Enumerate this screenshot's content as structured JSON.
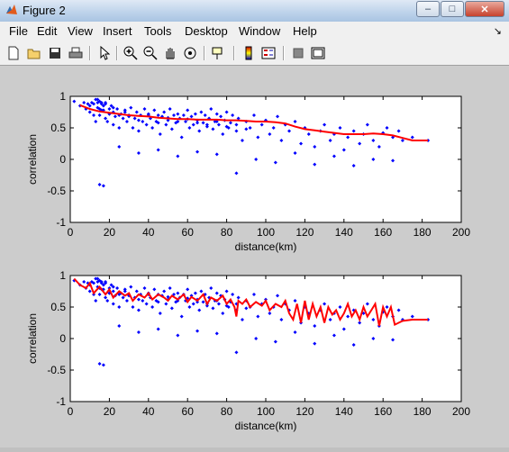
{
  "window": {
    "title": "Figure 2",
    "close_glyph": "✕",
    "min_glyph": "–",
    "max_glyph": "□"
  },
  "menu": [
    "File",
    "Edit",
    "View",
    "Insert",
    "Tools",
    "Desktop",
    "Window",
    "Help"
  ],
  "toolbar": {
    "icons": [
      "new-file-icon",
      "open-folder-icon",
      "save-icon",
      "print-icon",
      "pointer-icon",
      "zoom-in-icon",
      "zoom-out-icon",
      "pan-hand-icon",
      "rotate-3d-icon",
      "data-cursor-icon",
      "colorbar-icon",
      "legend-icon",
      "hide-plot-tools-icon",
      "show-plot-tools-icon"
    ]
  },
  "colors": {
    "points": "#0000ff",
    "line": "#ff0000",
    "axes_bg": "#ffffff",
    "figure_bg": "#cccccc"
  },
  "chart_data": [
    {
      "type": "scatter",
      "xlabel": "distance(km)",
      "ylabel": "correlation",
      "xlim": [
        0,
        200
      ],
      "ylim": [
        -1,
        1
      ],
      "xticks": [
        "0",
        "20",
        "40",
        "60",
        "80",
        "100",
        "120",
        "140",
        "160",
        "180",
        "200"
      ],
      "yticks": [
        "1",
        "0.5",
        "0",
        "-0.5",
        "-1"
      ],
      "series": [
        {
          "kind": "points",
          "x": [
            2,
            5,
            7,
            8,
            9,
            10,
            11,
            12,
            12,
            13,
            13,
            14,
            14,
            15,
            15,
            16,
            16,
            17,
            18,
            18,
            19,
            20,
            20,
            21,
            22,
            22,
            23,
            24,
            25,
            26,
            27,
            28,
            29,
            30,
            31,
            32,
            33,
            34,
            35,
            36,
            37,
            38,
            39,
            40,
            41,
            42,
            43,
            44,
            45,
            46,
            47,
            48,
            49,
            50,
            51,
            52,
            53,
            54,
            55,
            56,
            57,
            58,
            59,
            60,
            61,
            62,
            63,
            64,
            65,
            66,
            67,
            68,
            69,
            70,
            71,
            72,
            73,
            74,
            75,
            76,
            77,
            78,
            79,
            80,
            81,
            82,
            83,
            85,
            86,
            88,
            90,
            92,
            94,
            96,
            98,
            100,
            102,
            104,
            106,
            108,
            110,
            112,
            115,
            118,
            120,
            122,
            125,
            128,
            130,
            133,
            135,
            138,
            140,
            142,
            145,
            148,
            150,
            152,
            155,
            158,
            160,
            162,
            165,
            168,
            170,
            175,
            183,
            10,
            14,
            15,
            16,
            17,
            18,
            20,
            22,
            25,
            28,
            30,
            35,
            40,
            45,
            50,
            55,
            60,
            65,
            70,
            75,
            80,
            85,
            90,
            15,
            17,
            85,
            25,
            35,
            45,
            55,
            65,
            75,
            95,
            105,
            115,
            125,
            135,
            145,
            155,
            165
          ],
          "y": [
            0.92,
            0.85,
            0.9,
            0.8,
            0.88,
            0.75,
            0.9,
            0.7,
            0.88,
            0.95,
            0.6,
            0.9,
            0.82,
            0.92,
            0.7,
            0.88,
            0.78,
            0.85,
            0.65,
            0.9,
            0.6,
            0.8,
            0.72,
            0.85,
            0.55,
            0.75,
            0.68,
            0.8,
            0.5,
            0.72,
            0.65,
            0.78,
            0.6,
            0.7,
            0.82,
            0.5,
            0.65,
            0.75,
            0.45,
            0.7,
            0.6,
            0.8,
            0.55,
            0.72,
            0.65,
            0.5,
            0.78,
            0.6,
            0.7,
            0.4,
            0.68,
            0.75,
            0.55,
            0.62,
            0.8,
            0.48,
            0.7,
            0.58,
            0.72,
            0.65,
            0.35,
            0.7,
            0.6,
            0.78,
            0.5,
            0.68,
            0.55,
            0.72,
            0.62,
            0.45,
            0.75,
            0.58,
            0.7,
            0.52,
            0.65,
            0.8,
            0.48,
            0.6,
            0.72,
            0.55,
            0.68,
            0.4,
            0.62,
            0.75,
            0.5,
            0.58,
            0.7,
            0.45,
            0.65,
            0.3,
            0.6,
            0.5,
            0.7,
            0.35,
            0.55,
            0.62,
            0.4,
            0.5,
            0.68,
            0.3,
            0.55,
            0.45,
            0.6,
            0.25,
            0.5,
            0.4,
            0.2,
            0.45,
            0.55,
            0.3,
            0.4,
            0.5,
            0.15,
            0.35,
            0.45,
            0.25,
            0.4,
            0.55,
            0.3,
            0.2,
            0.42,
            0.5,
            0.35,
            0.45,
            0.3,
            0.35,
            0.3,
            0.85,
            0.95,
            0.8,
            0.9,
            0.78,
            0.88,
            0.72,
            0.82,
            0.7,
            0.75,
            0.68,
            0.62,
            0.7,
            0.58,
            0.66,
            0.6,
            0.64,
            0.58,
            0.55,
            0.6,
            0.52,
            0.55,
            0.48,
            -0.4,
            -0.42,
            -0.22,
            0.2,
            0.1,
            0.15,
            0.05,
            0.12,
            0.08,
            0.0,
            -0.05,
            0.1,
            -0.08,
            0.05,
            -0.1,
            0.0,
            -0.02
          ]
        },
        {
          "kind": "smooth-line",
          "x": [
            5,
            10,
            15,
            20,
            25,
            30,
            35,
            40,
            45,
            50,
            55,
            60,
            65,
            70,
            75,
            80,
            85,
            90,
            95,
            100,
            105,
            110,
            115,
            120,
            125,
            130,
            135,
            140,
            145,
            150,
            155,
            160,
            165,
            170,
            175,
            183
          ],
          "y": [
            0.86,
            0.8,
            0.76,
            0.74,
            0.72,
            0.7,
            0.69,
            0.68,
            0.66,
            0.65,
            0.64,
            0.64,
            0.63,
            0.63,
            0.63,
            0.62,
            0.62,
            0.61,
            0.6,
            0.6,
            0.59,
            0.57,
            0.52,
            0.48,
            0.46,
            0.44,
            0.42,
            0.4,
            0.4,
            0.4,
            0.41,
            0.4,
            0.38,
            0.34,
            0.3,
            0.3
          ]
        }
      ]
    },
    {
      "type": "scatter",
      "xlabel": "distance(km)",
      "ylabel": "correlation",
      "xlim": [
        0,
        200
      ],
      "ylim": [
        -1,
        1
      ],
      "xticks": [
        "0",
        "20",
        "40",
        "60",
        "80",
        "100",
        "120",
        "140",
        "160",
        "180",
        "200"
      ],
      "yticks": [
        "1",
        "0.5",
        "0",
        "-0.5",
        "-1"
      ],
      "series": [
        {
          "kind": "points",
          "same_as_top": true
        },
        {
          "kind": "raw-line",
          "x": [
            2,
            5,
            8,
            10,
            12,
            15,
            18,
            20,
            22,
            25,
            28,
            30,
            32,
            35,
            38,
            40,
            42,
            45,
            48,
            50,
            52,
            55,
            58,
            60,
            62,
            65,
            68,
            70,
            72,
            75,
            78,
            80,
            82,
            84,
            85,
            86,
            88,
            90,
            92,
            95,
            98,
            100,
            102,
            105,
            108,
            110,
            112,
            114,
            116,
            118,
            120,
            122,
            124,
            126,
            128,
            130,
            132,
            134,
            136,
            138,
            140,
            142,
            144,
            146,
            148,
            150,
            152,
            154,
            156,
            158,
            160,
            162,
            164,
            166,
            170,
            175,
            183
          ],
          "y": [
            0.95,
            0.85,
            0.8,
            0.88,
            0.72,
            0.82,
            0.7,
            0.78,
            0.65,
            0.75,
            0.68,
            0.72,
            0.6,
            0.7,
            0.65,
            0.72,
            0.62,
            0.7,
            0.65,
            0.6,
            0.68,
            0.62,
            0.7,
            0.58,
            0.66,
            0.6,
            0.7,
            0.55,
            0.65,
            0.6,
            0.68,
            0.55,
            0.62,
            0.5,
            0.35,
            0.6,
            0.55,
            0.62,
            0.5,
            0.58,
            0.52,
            0.6,
            0.45,
            0.55,
            0.5,
            0.6,
            0.4,
            0.3,
            0.55,
            0.25,
            0.6,
            0.3,
            0.55,
            0.35,
            0.5,
            0.25,
            0.5,
            0.38,
            0.45,
            0.3,
            0.4,
            0.55,
            0.35,
            0.45,
            0.3,
            0.5,
            0.35,
            0.45,
            0.55,
            0.2,
            0.5,
            0.35,
            0.5,
            0.22,
            0.28,
            0.3,
            0.3
          ]
        }
      ]
    }
  ]
}
